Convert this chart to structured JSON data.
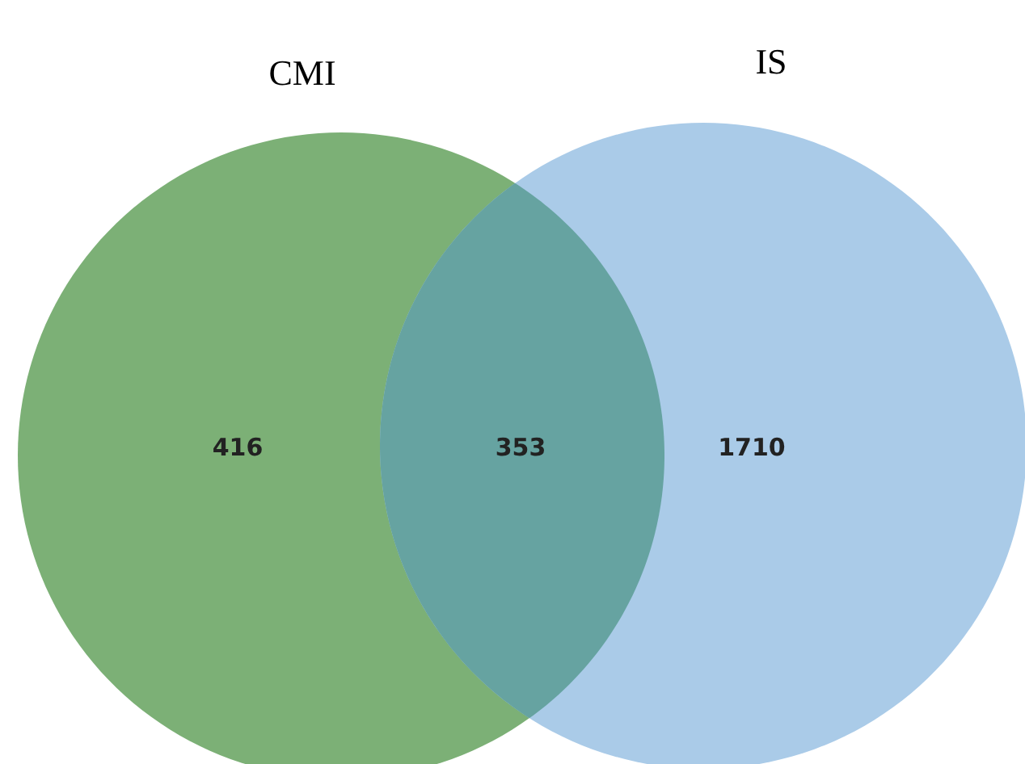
{
  "chart_data": {
    "type": "other",
    "categories": [
      null,
      null,
      null
    ],
    "values": [
      416,
      353,
      1710
    ],
    "colors": [
      "#7cb076",
      "#66a3a1",
      "#aacbe8"
    ],
    "data_labels": true,
    "annotations": [
      "CMI",
      "IS"
    ]
  }
}
